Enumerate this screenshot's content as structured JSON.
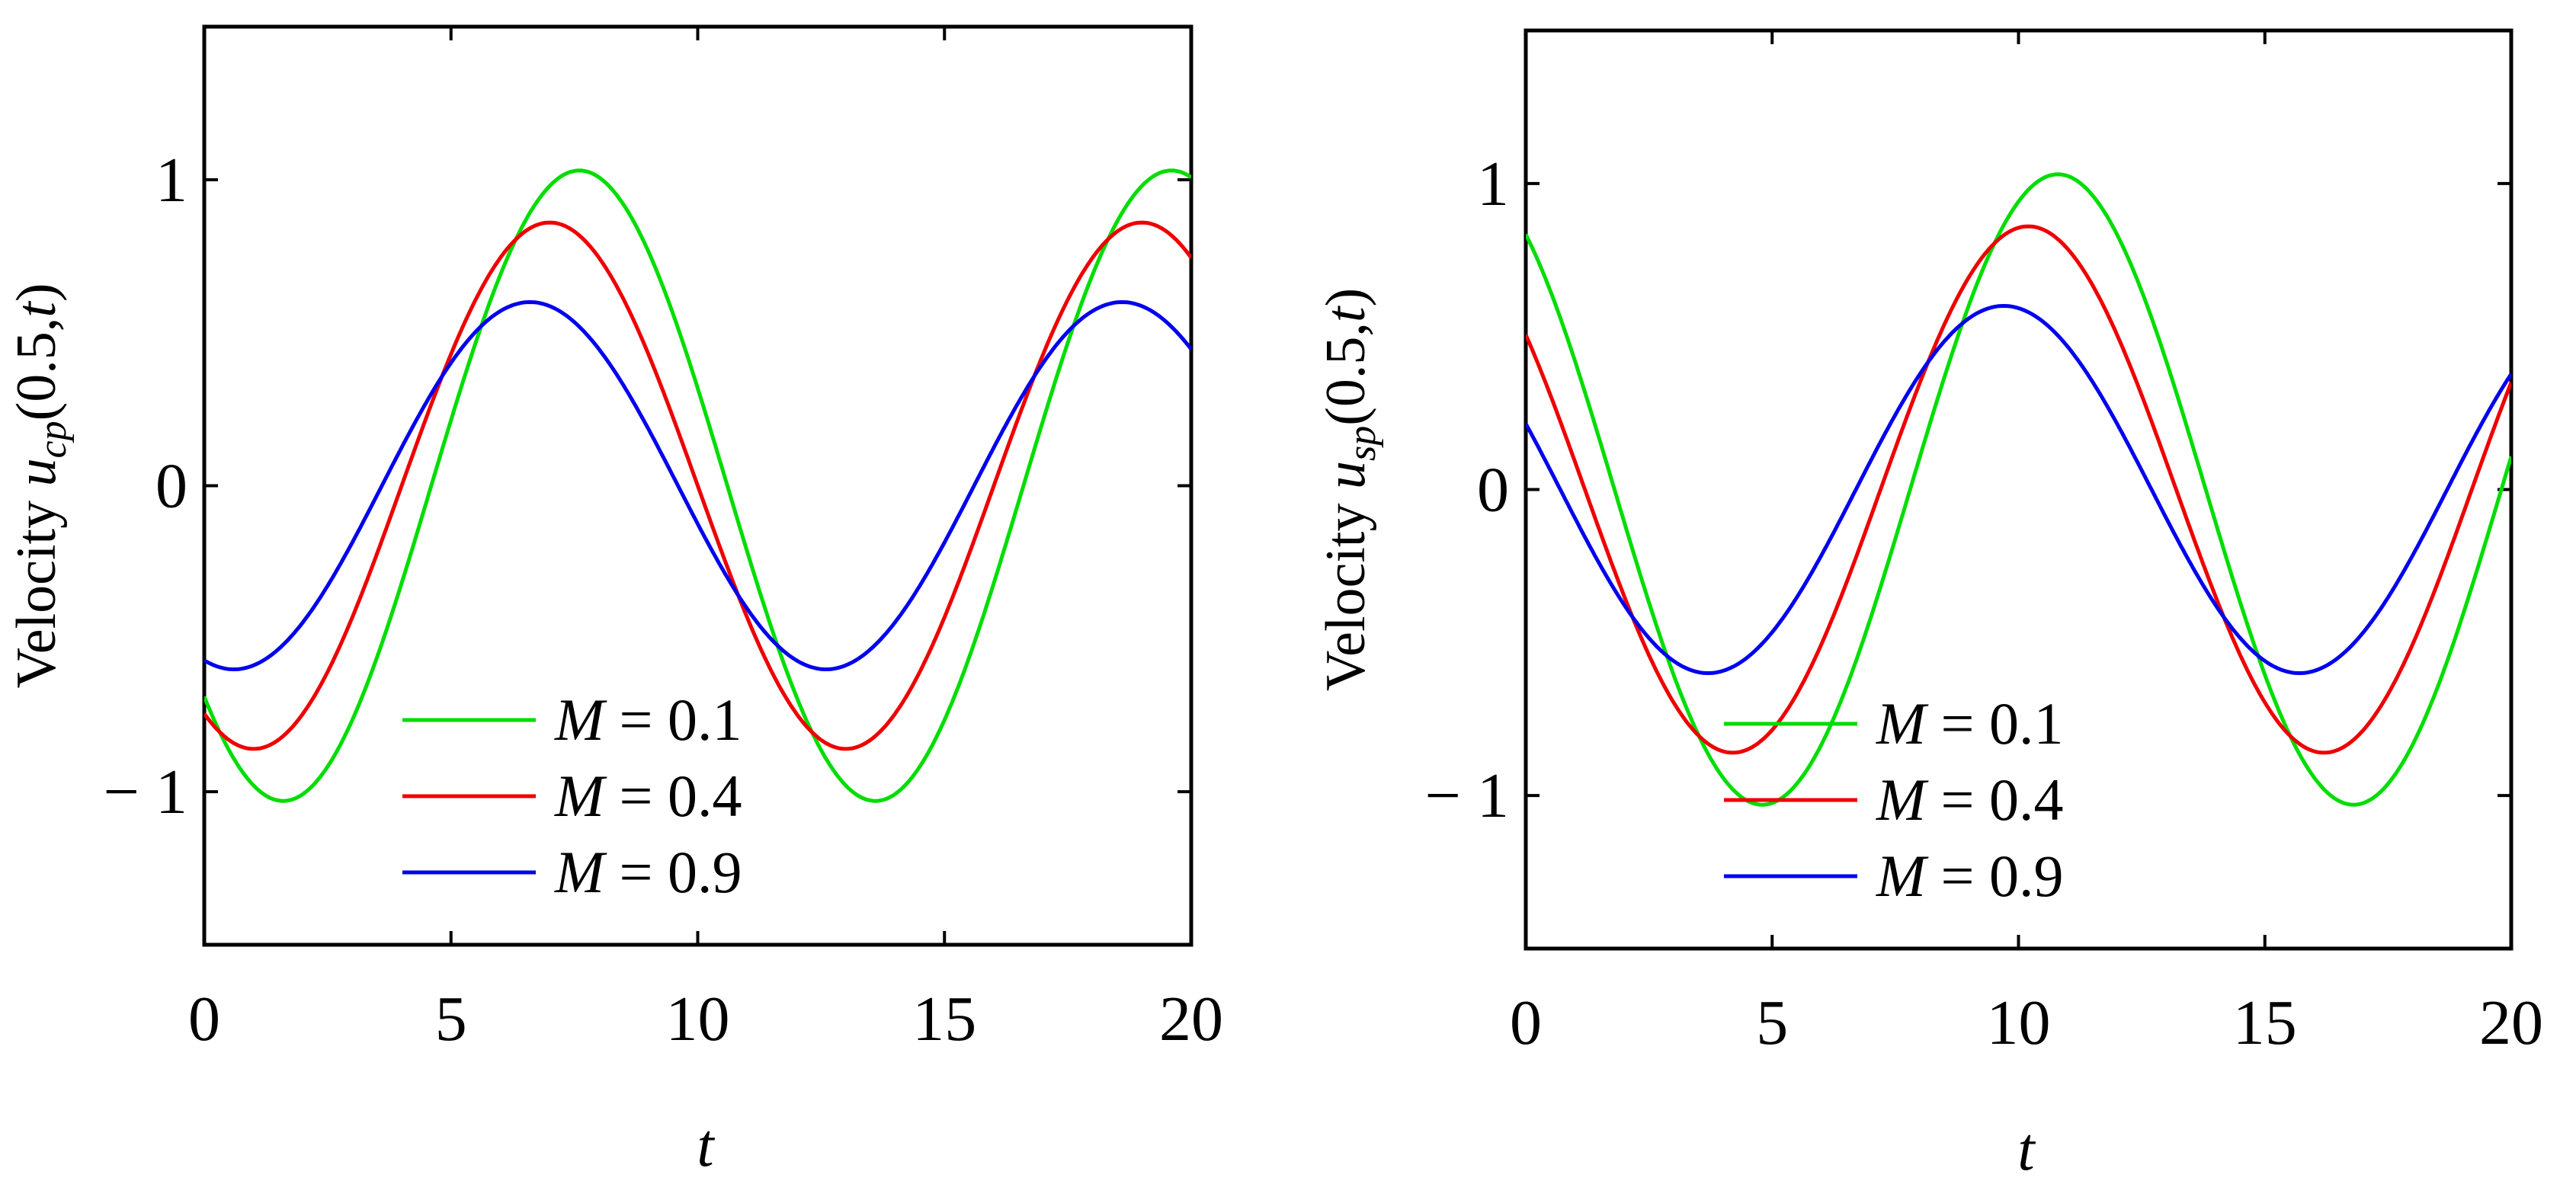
{
  "chart_data": [
    {
      "type": "line",
      "title": "",
      "xlabel": "t",
      "ylabel": {
        "prefix": "Velocity",
        "var": "u",
        "sub": "cp",
        "args": "(0.5,",
        "targ": "t",
        "close": ")"
      },
      "xlim": [
        0,
        20
      ],
      "ylim": [
        -1.5,
        1.5
      ],
      "x_ticks": [
        0,
        5,
        10,
        15,
        20
      ],
      "x_tick_labels": [
        "0",
        "5",
        "10",
        "15",
        "20"
      ],
      "y_ticks": [
        -1,
        0,
        1
      ],
      "y_tick_labels": [
        "− 1",
        "0",
        "1"
      ],
      "grid": false,
      "legend_position": "bottom-center",
      "series": [
        {
          "name": "M = 0.1",
          "legend_var": "M",
          "legend_value": "= 0.1",
          "color": "#00dd00",
          "amplitude": 1.03,
          "phase_shift": 7.6
        },
        {
          "name": "M = 0.4",
          "legend_var": "M",
          "legend_value": "= 0.4",
          "color": "#ee0000",
          "amplitude": 0.86,
          "phase_shift": 7.0
        },
        {
          "name": "M = 0.9",
          "legend_var": "M",
          "legend_value": "= 0.9",
          "color": "#0000ee",
          "amplitude": 0.6,
          "phase_shift": 6.6
        }
      ],
      "function": "amplitude * cos(2*pi*(t - phase_shift)/12)"
    },
    {
      "type": "line",
      "title": "",
      "xlabel": "t",
      "ylabel": {
        "prefix": "Velocity",
        "var": "u",
        "sub": "sp",
        "args": "(0.5,",
        "targ": "t",
        "close": ")"
      },
      "xlim": [
        0,
        20
      ],
      "ylim": [
        -1.5,
        1.5
      ],
      "x_ticks": [
        0,
        5,
        10,
        15,
        20
      ],
      "x_tick_labels": [
        "0",
        "5",
        "10",
        "15",
        "20"
      ],
      "y_ticks": [
        -1,
        0,
        1
      ],
      "y_tick_labels": [
        "− 1",
        "0",
        "1"
      ],
      "grid": false,
      "legend_position": "bottom-center",
      "series": [
        {
          "name": "M = 0.1",
          "legend_var": "M",
          "legend_value": "= 0.1",
          "color": "#00dd00",
          "amplitude": 1.03,
          "phase_shift": 10.8
        },
        {
          "name": "M = 0.4",
          "legend_var": "M",
          "legend_value": "= 0.4",
          "color": "#ee0000",
          "amplitude": 0.86,
          "phase_shift": 10.2
        },
        {
          "name": "M = 0.9",
          "legend_var": "M",
          "legend_value": "= 0.9",
          "color": "#0000ee",
          "amplitude": 0.6,
          "phase_shift": 9.7
        }
      ],
      "function": "amplitude * cos(2*pi*(t - phase_shift)/12)"
    }
  ]
}
